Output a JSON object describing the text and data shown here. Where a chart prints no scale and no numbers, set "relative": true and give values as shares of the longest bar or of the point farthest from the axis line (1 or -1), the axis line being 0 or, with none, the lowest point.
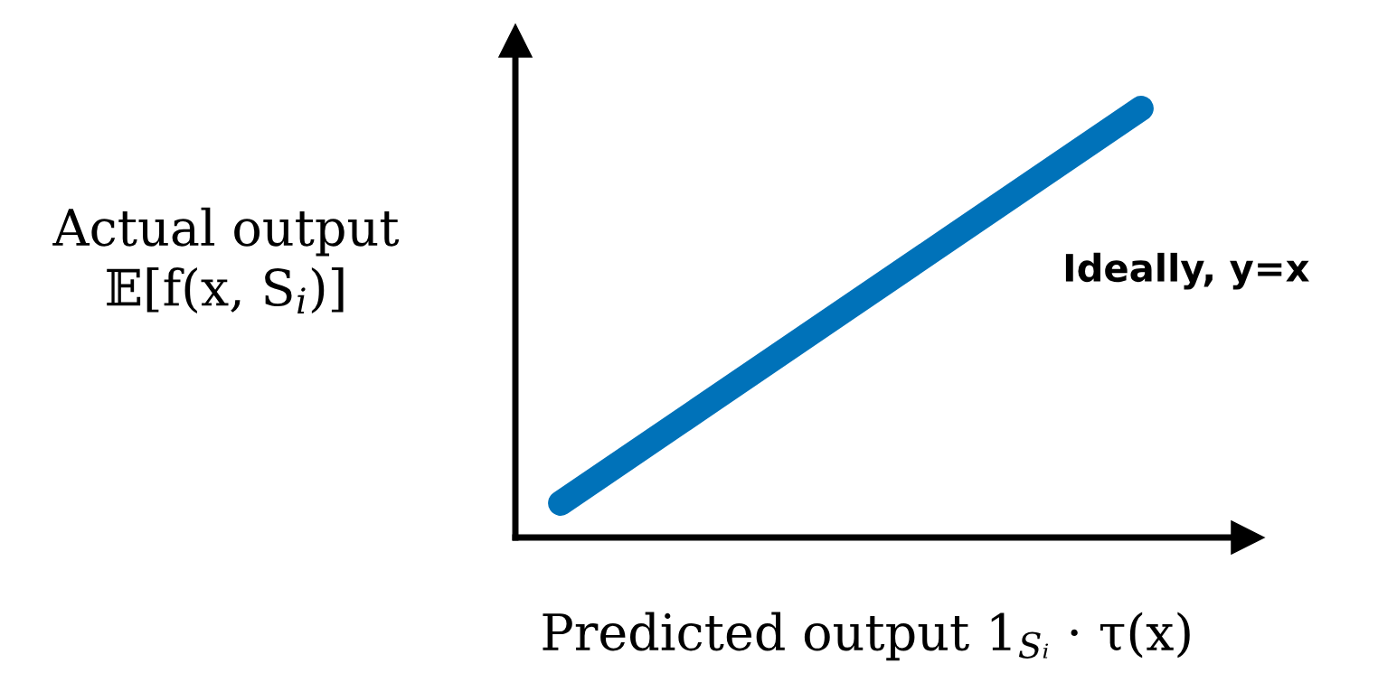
{
  "chart_data": {
    "type": "line",
    "relative": true,
    "categories": [
      null,
      null,
      null,
      null,
      null
    ],
    "series": [
      {
        "color": "#0072b9",
        "values": [
          0.08,
          0.31,
          0.54,
          0.77,
          1.0
        ]
      }
    ],
    "xlabel": "Predicted output 1$_{Sᵢ}$ · τ(x)",
    "ylabel": "Actual output\n𝔼[f(x, S$_{i}$)]",
    "annotations": [
      "Ideally, y=x"
    ],
    "line_style": "solid"
  }
}
